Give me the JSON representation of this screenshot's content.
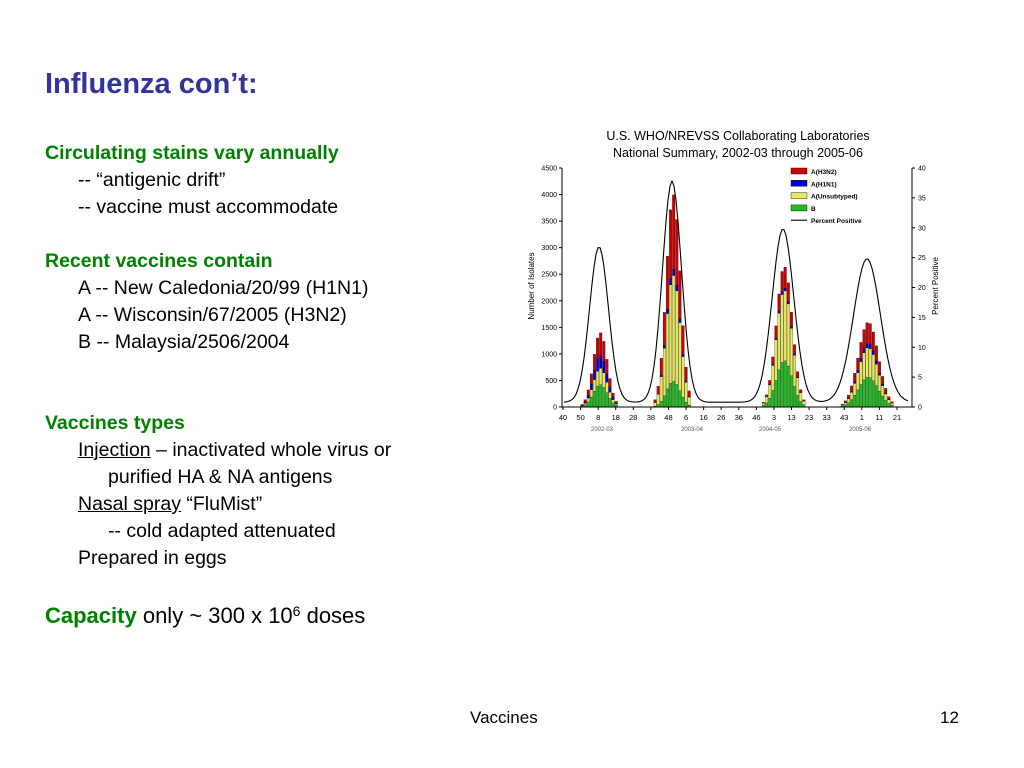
{
  "slide": {
    "title": "Influenza con’t:",
    "sec1_heading": "Circulating stains vary annually",
    "sec1_line1": "-- “antigenic drift”",
    "sec1_line2": "-- vaccine must accommodate",
    "sec2_heading": "Recent vaccines contain",
    "sec2_line1": "A -- New Caledonia/20/99 (H1N1)",
    "sec2_line2": "A -- Wisconsin/67/2005 (H3N2)",
    "sec2_line3": "B -- Malaysia/2506/2004",
    "sec3_heading": "Vaccines types",
    "injection_label": "Injection",
    "injection_text": " – inactivated whole virus or",
    "injection_cont": "purified HA & NA antigens",
    "nasal_label": "Nasal spray",
    "nasal_text": " “FluMist”",
    "nasal_cont": "-- cold adapted attenuated",
    "eggs": "Prepared in eggs",
    "capacity_label": "Capacity",
    "capacity_text": " only ~ 300 x 10",
    "capacity_exp": "6",
    "capacity_unit": " doses",
    "footer_center": "Vaccines",
    "footer_page": "12"
  },
  "chart_data": {
    "type": "bar",
    "title_line1": "U.S. WHO/NREVSS Collaborating Laboratories",
    "title_line2": "National Summary, 2002-03 through 2005-06",
    "ylabel": "Number of Isolates",
    "ylabel_right": "Percent Positive",
    "ylim": [
      0,
      4500
    ],
    "ylim_right": [
      0,
      40
    ],
    "y_ticks": [
      "0",
      "500",
      "1000",
      "1500",
      "2000",
      "2500",
      "3000",
      "3500",
      "4000",
      "4500"
    ],
    "y_ticks_right": [
      "0",
      "5",
      "10",
      "15",
      "20",
      "25",
      "30",
      "35",
      "40"
    ],
    "x_ticks": [
      "40",
      "50",
      "8",
      "18",
      "28",
      "38",
      "48",
      "6",
      "16",
      "26",
      "36",
      "46",
      "3",
      "13",
      "23",
      "33",
      "43",
      "1",
      "11",
      "21"
    ],
    "season_labels": [
      "2002-03",
      "2003-04",
      "2004-05",
      "2005-06"
    ],
    "legend": [
      "A(H3N2)",
      "A(H1N1)",
      "A(Unsubtyped)",
      "B",
      "Percent Positive"
    ],
    "colors": {
      "h3n2": "#cc0000",
      "h1n1": "#0000cc",
      "unsub": "#e8e860",
      "b": "#22bb22",
      "line": "#000000"
    },
    "peaks": [
      {
        "season": "2002-03",
        "peak_total": 1400,
        "peak_percent": 26
      },
      {
        "season": "2003-04",
        "peak_total": 4000,
        "peak_percent": 37
      },
      {
        "season": "2004-05",
        "peak_total": 2650,
        "peak_percent": 29
      },
      {
        "season": "2005-06",
        "peak_total": 1600,
        "peak_percent": 24
      }
    ]
  }
}
